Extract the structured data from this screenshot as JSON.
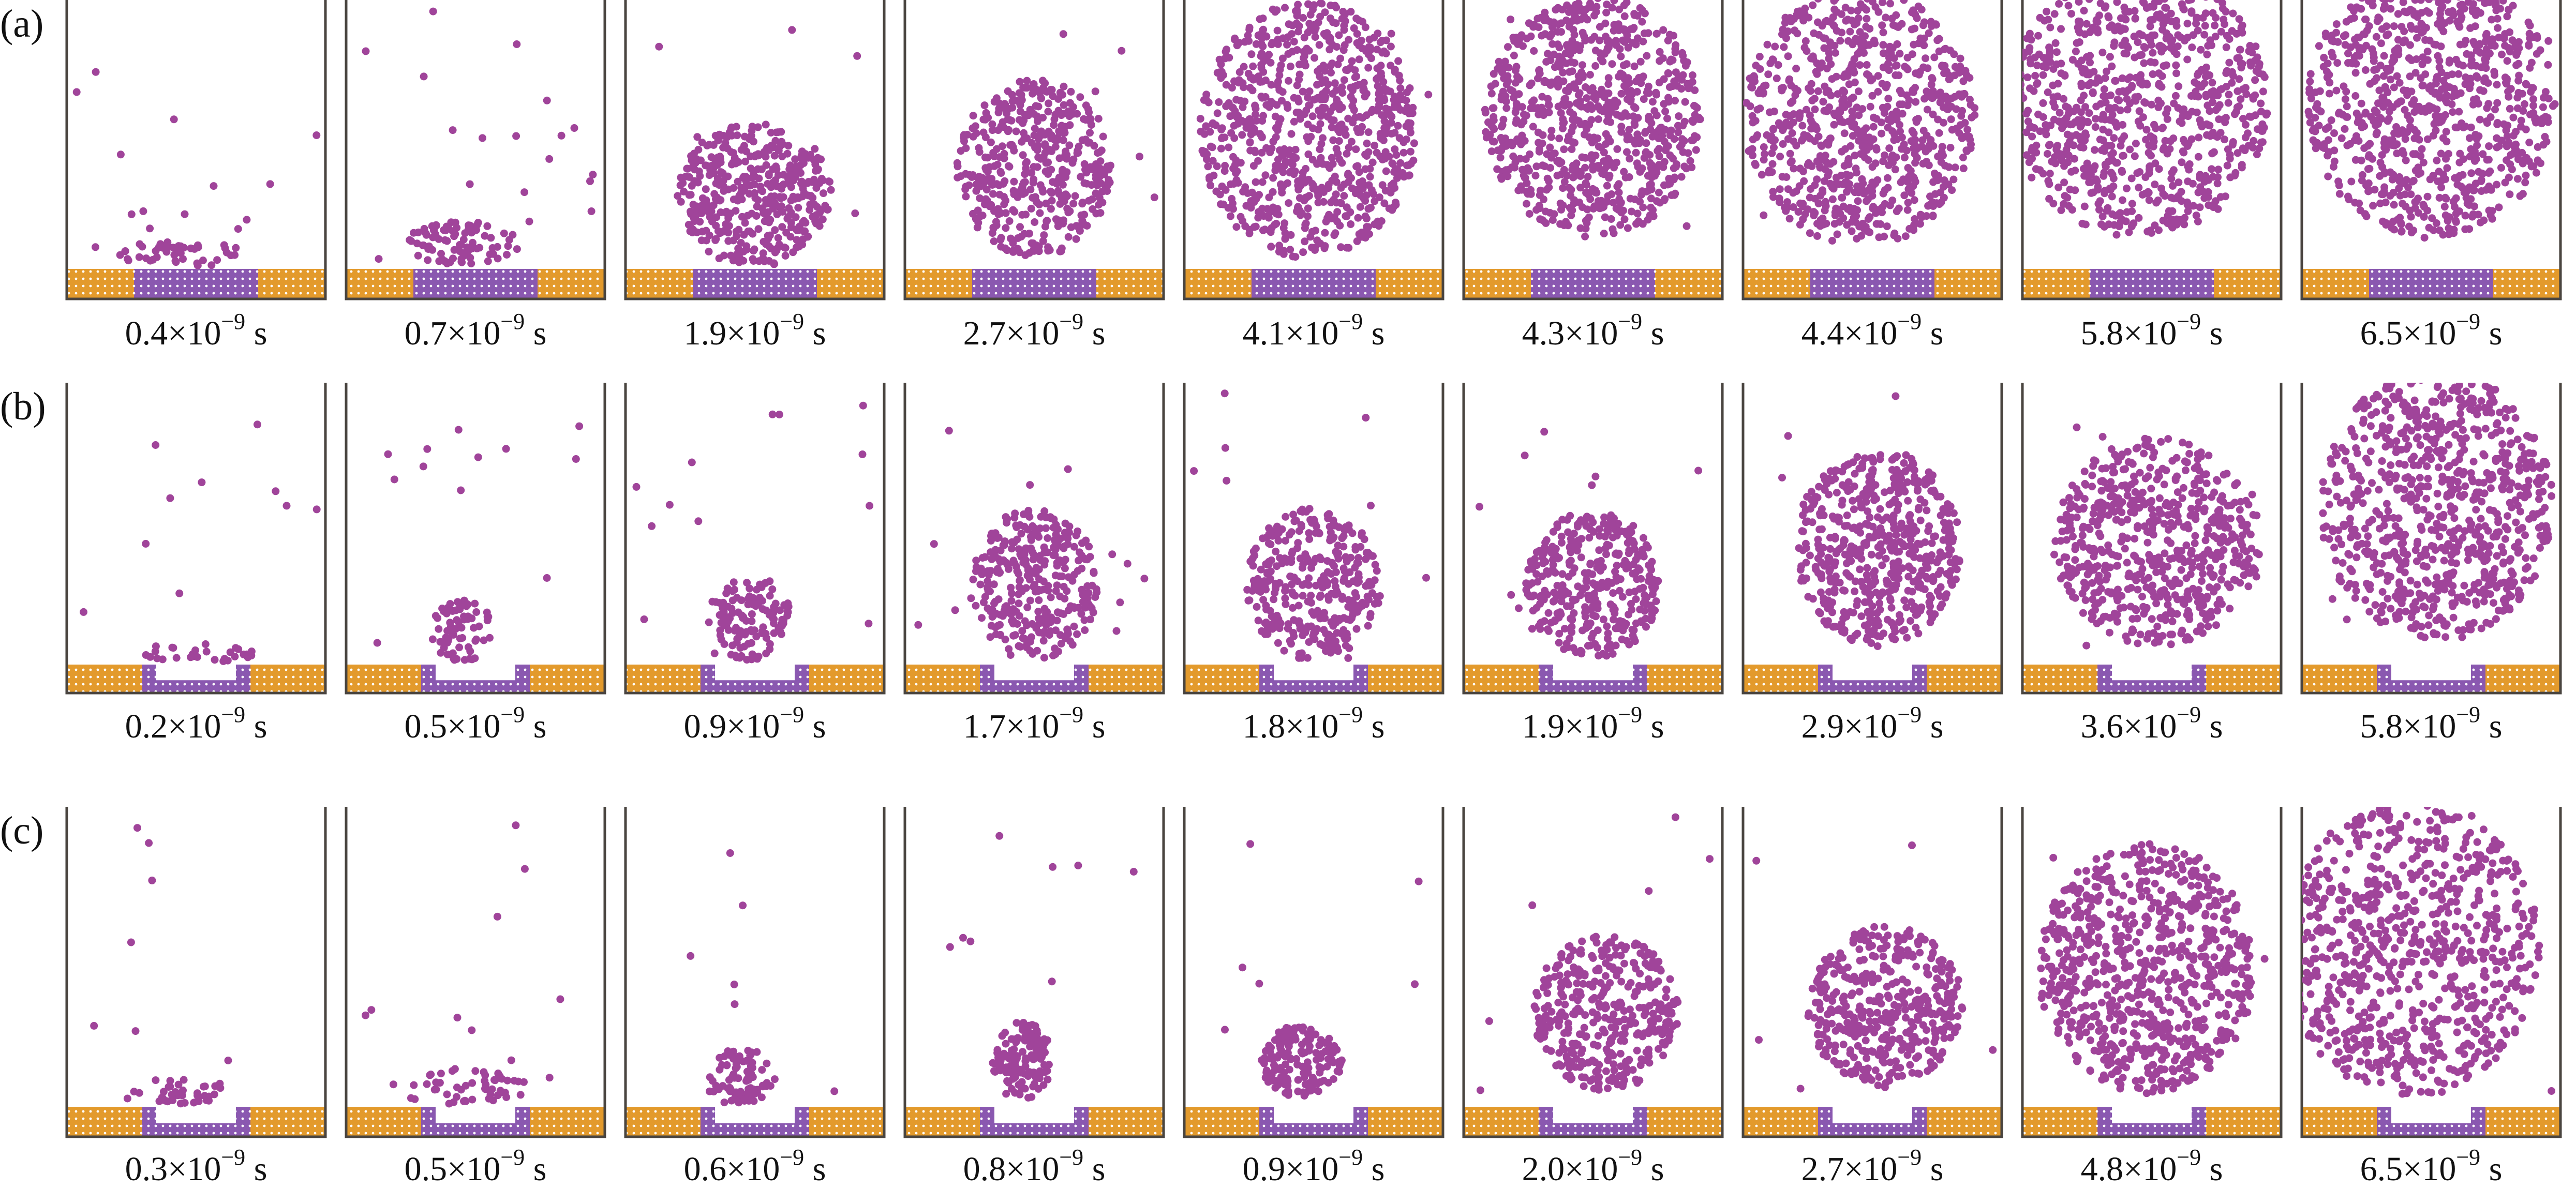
{
  "colors": {
    "fluid": "#a0449a",
    "substrate_outer": "#e39a2c",
    "substrate_inner": "#8a58b0",
    "wall": "#4a4540"
  },
  "rows": [
    {
      "label": "(a)",
      "times": [
        {
          "mantissa": "0.4×10",
          "exponent": "−9",
          "unit": " s"
        },
        {
          "mantissa": "0.7×10",
          "exponent": "−9",
          "unit": " s"
        },
        {
          "mantissa": "1.9×10",
          "exponent": "−9",
          "unit": " s"
        },
        {
          "mantissa": "2.7×10",
          "exponent": "−9",
          "unit": " s"
        },
        {
          "mantissa": "4.1×10",
          "exponent": "−9",
          "unit": " s"
        },
        {
          "mantissa": "4.3×10",
          "exponent": "−9",
          "unit": " s"
        },
        {
          "mantissa": "4.4×10",
          "exponent": "−9",
          "unit": " s"
        },
        {
          "mantissa": "5.8×10",
          "exponent": "−9",
          "unit": " s"
        },
        {
          "mantissa": "6.5×10",
          "exponent": "−9",
          "unit": " s"
        }
      ]
    },
    {
      "label": "(b)",
      "times": [
        {
          "mantissa": "0.2×10",
          "exponent": "−9",
          "unit": " s"
        },
        {
          "mantissa": "0.5×10",
          "exponent": "−9",
          "unit": " s"
        },
        {
          "mantissa": "0.9×10",
          "exponent": "−9",
          "unit": " s"
        },
        {
          "mantissa": "1.7×10",
          "exponent": "−9",
          "unit": " s"
        },
        {
          "mantissa": "1.8×10",
          "exponent": "−9",
          "unit": " s"
        },
        {
          "mantissa": "1.9×10",
          "exponent": "−9",
          "unit": " s"
        },
        {
          "mantissa": "2.9×10",
          "exponent": "−9",
          "unit": " s"
        },
        {
          "mantissa": "3.6×10",
          "exponent": "−9",
          "unit": " s"
        },
        {
          "mantissa": "5.8×10",
          "exponent": "−9",
          "unit": " s"
        }
      ]
    },
    {
      "label": "(c)",
      "times": [
        {
          "mantissa": "0.3×10",
          "exponent": "−9",
          "unit": " s"
        },
        {
          "mantissa": "0.5×10",
          "exponent": "−9",
          "unit": " s"
        },
        {
          "mantissa": "0.6×10",
          "exponent": "−9",
          "unit": " s"
        },
        {
          "mantissa": "0.8×10",
          "exponent": "−9",
          "unit": " s"
        },
        {
          "mantissa": "0.9×10",
          "exponent": "−9",
          "unit": " s"
        },
        {
          "mantissa": "2.0×10",
          "exponent": "−9",
          "unit": " s"
        },
        {
          "mantissa": "2.7×10",
          "exponent": "−9",
          "unit": " s"
        },
        {
          "mantissa": "4.8×10",
          "exponent": "−9",
          "unit": " s"
        },
        {
          "mantissa": "6.5×10",
          "exponent": "−9",
          "unit": " s"
        }
      ]
    }
  ]
}
